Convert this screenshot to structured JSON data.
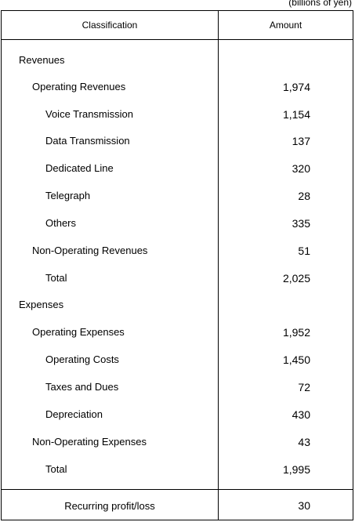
{
  "unit_note": "(billions of yen)",
  "header": {
    "classification": "Classification",
    "amount": "Amount"
  },
  "rows": [
    {
      "label": "Revenues",
      "value": ""
    },
    {
      "label": "Operating Revenues",
      "value": "1,974"
    },
    {
      "label": "Voice Transmission",
      "value": "1,154"
    },
    {
      "label": "Data Transmission",
      "value": "137"
    },
    {
      "label": "Dedicated Line",
      "value": "320"
    },
    {
      "label": "Telegraph",
      "value": "28"
    },
    {
      "label": "Others",
      "value": "335"
    },
    {
      "label": "Non-Operating Revenues",
      "value": "51"
    },
    {
      "label": "Total",
      "value": "2,025"
    },
    {
      "label": "Expenses",
      "value": ""
    },
    {
      "label": "Operating Expenses",
      "value": "1,952"
    },
    {
      "label": "Operating Costs",
      "value": "1,450"
    },
    {
      "label": "Taxes and Dues",
      "value": "72"
    },
    {
      "label": "Depreciation",
      "value": "430"
    },
    {
      "label": "Non-Operating Expenses",
      "value": "43"
    },
    {
      "label": "Total",
      "value": "1,995"
    }
  ],
  "footer": {
    "label": "Recurring profit/loss",
    "value": "30"
  }
}
